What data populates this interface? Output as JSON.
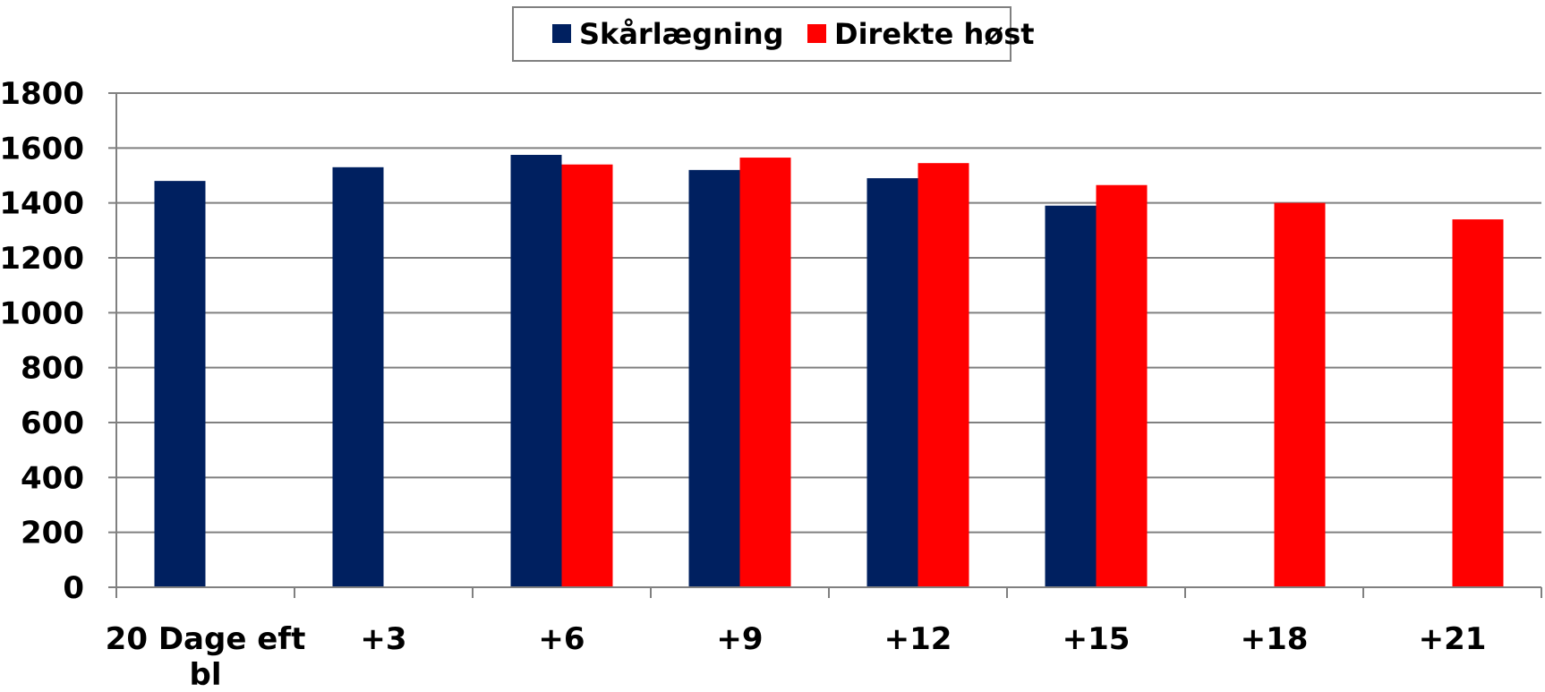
{
  "chart_data": {
    "type": "bar",
    "categories": [
      [
        "20 Dage eft",
        "bl"
      ],
      [
        "+3"
      ],
      [
        "+6"
      ],
      [
        "+9"
      ],
      [
        "+12"
      ],
      [
        "+15"
      ],
      [
        "+18"
      ],
      [
        "+21"
      ]
    ],
    "series": [
      {
        "name": "Skårlægning",
        "color": "#002060",
        "values": [
          1480,
          1530,
          1575,
          1520,
          1490,
          1390,
          null,
          null
        ]
      },
      {
        "name": "Direkte høst",
        "color": "#ff0000",
        "values": [
          null,
          null,
          1540,
          1565,
          1545,
          1465,
          1400,
          1340
        ]
      }
    ],
    "ylim": [
      0,
      1800
    ],
    "yticks": [
      0,
      200,
      400,
      600,
      800,
      1000,
      1200,
      1400,
      1600,
      1800
    ],
    "grid": true,
    "legend_position": "top-center"
  }
}
